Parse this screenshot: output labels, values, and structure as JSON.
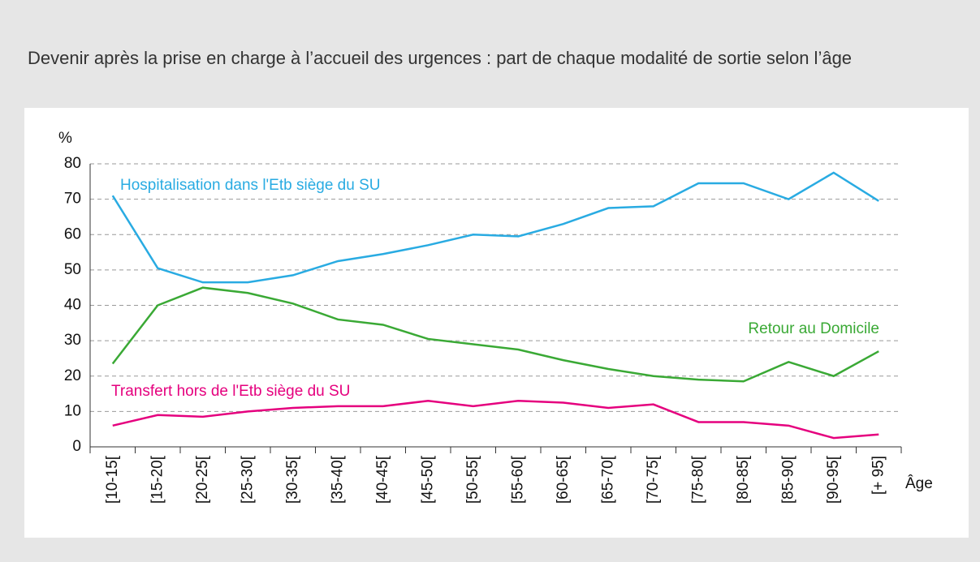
{
  "chart_data": {
    "type": "line",
    "title": "Devenir après la prise en charge à l’accueil des urgences : part de chaque modalité de sortie selon l’âge",
    "y_label": "%",
    "x_label": "Âge",
    "categories": [
      "[10-15[",
      "[15-20[",
      "[20-25[",
      "[25-30[",
      "[30-35[",
      "[35-40[",
      "[40-45[",
      "[45-50[",
      "[50-55[",
      "[55-60[",
      "[60-65[",
      "[65-70[",
      "[70-75[",
      "[75-80[",
      "[80-85[",
      "[85-90[",
      "[90-95[",
      "[+ 95]"
    ],
    "series": [
      {
        "name": "Hospitalisation dans l'Etb siège du SU",
        "color": "#29abe2",
        "values": [
          71,
          50.5,
          46.5,
          46.5,
          48.5,
          52.5,
          54.5,
          57,
          60,
          59.5,
          63,
          67.5,
          68,
          74.5,
          74.5,
          70,
          77.5,
          69.5
        ]
      },
      {
        "name": "Retour au Domicile",
        "color": "#3aa935",
        "values": [
          23.5,
          40,
          45,
          43.5,
          40.5,
          36,
          34.5,
          30.5,
          29,
          27.5,
          24.5,
          22,
          20,
          19,
          18.5,
          24,
          20,
          27
        ]
      },
      {
        "name": "Transfert hors de l'Etb siège du SU",
        "color": "#e5007e",
        "values": [
          6,
          9,
          8.5,
          10,
          11,
          11.5,
          11.5,
          13,
          11.5,
          13,
          12.5,
          11,
          12,
          7,
          7,
          6,
          2.5,
          3.5
        ]
      }
    ],
    "ylim": [
      0,
      80
    ],
    "yticks": [
      0,
      10,
      20,
      30,
      40,
      50,
      60,
      70,
      80
    ],
    "grid": true
  }
}
